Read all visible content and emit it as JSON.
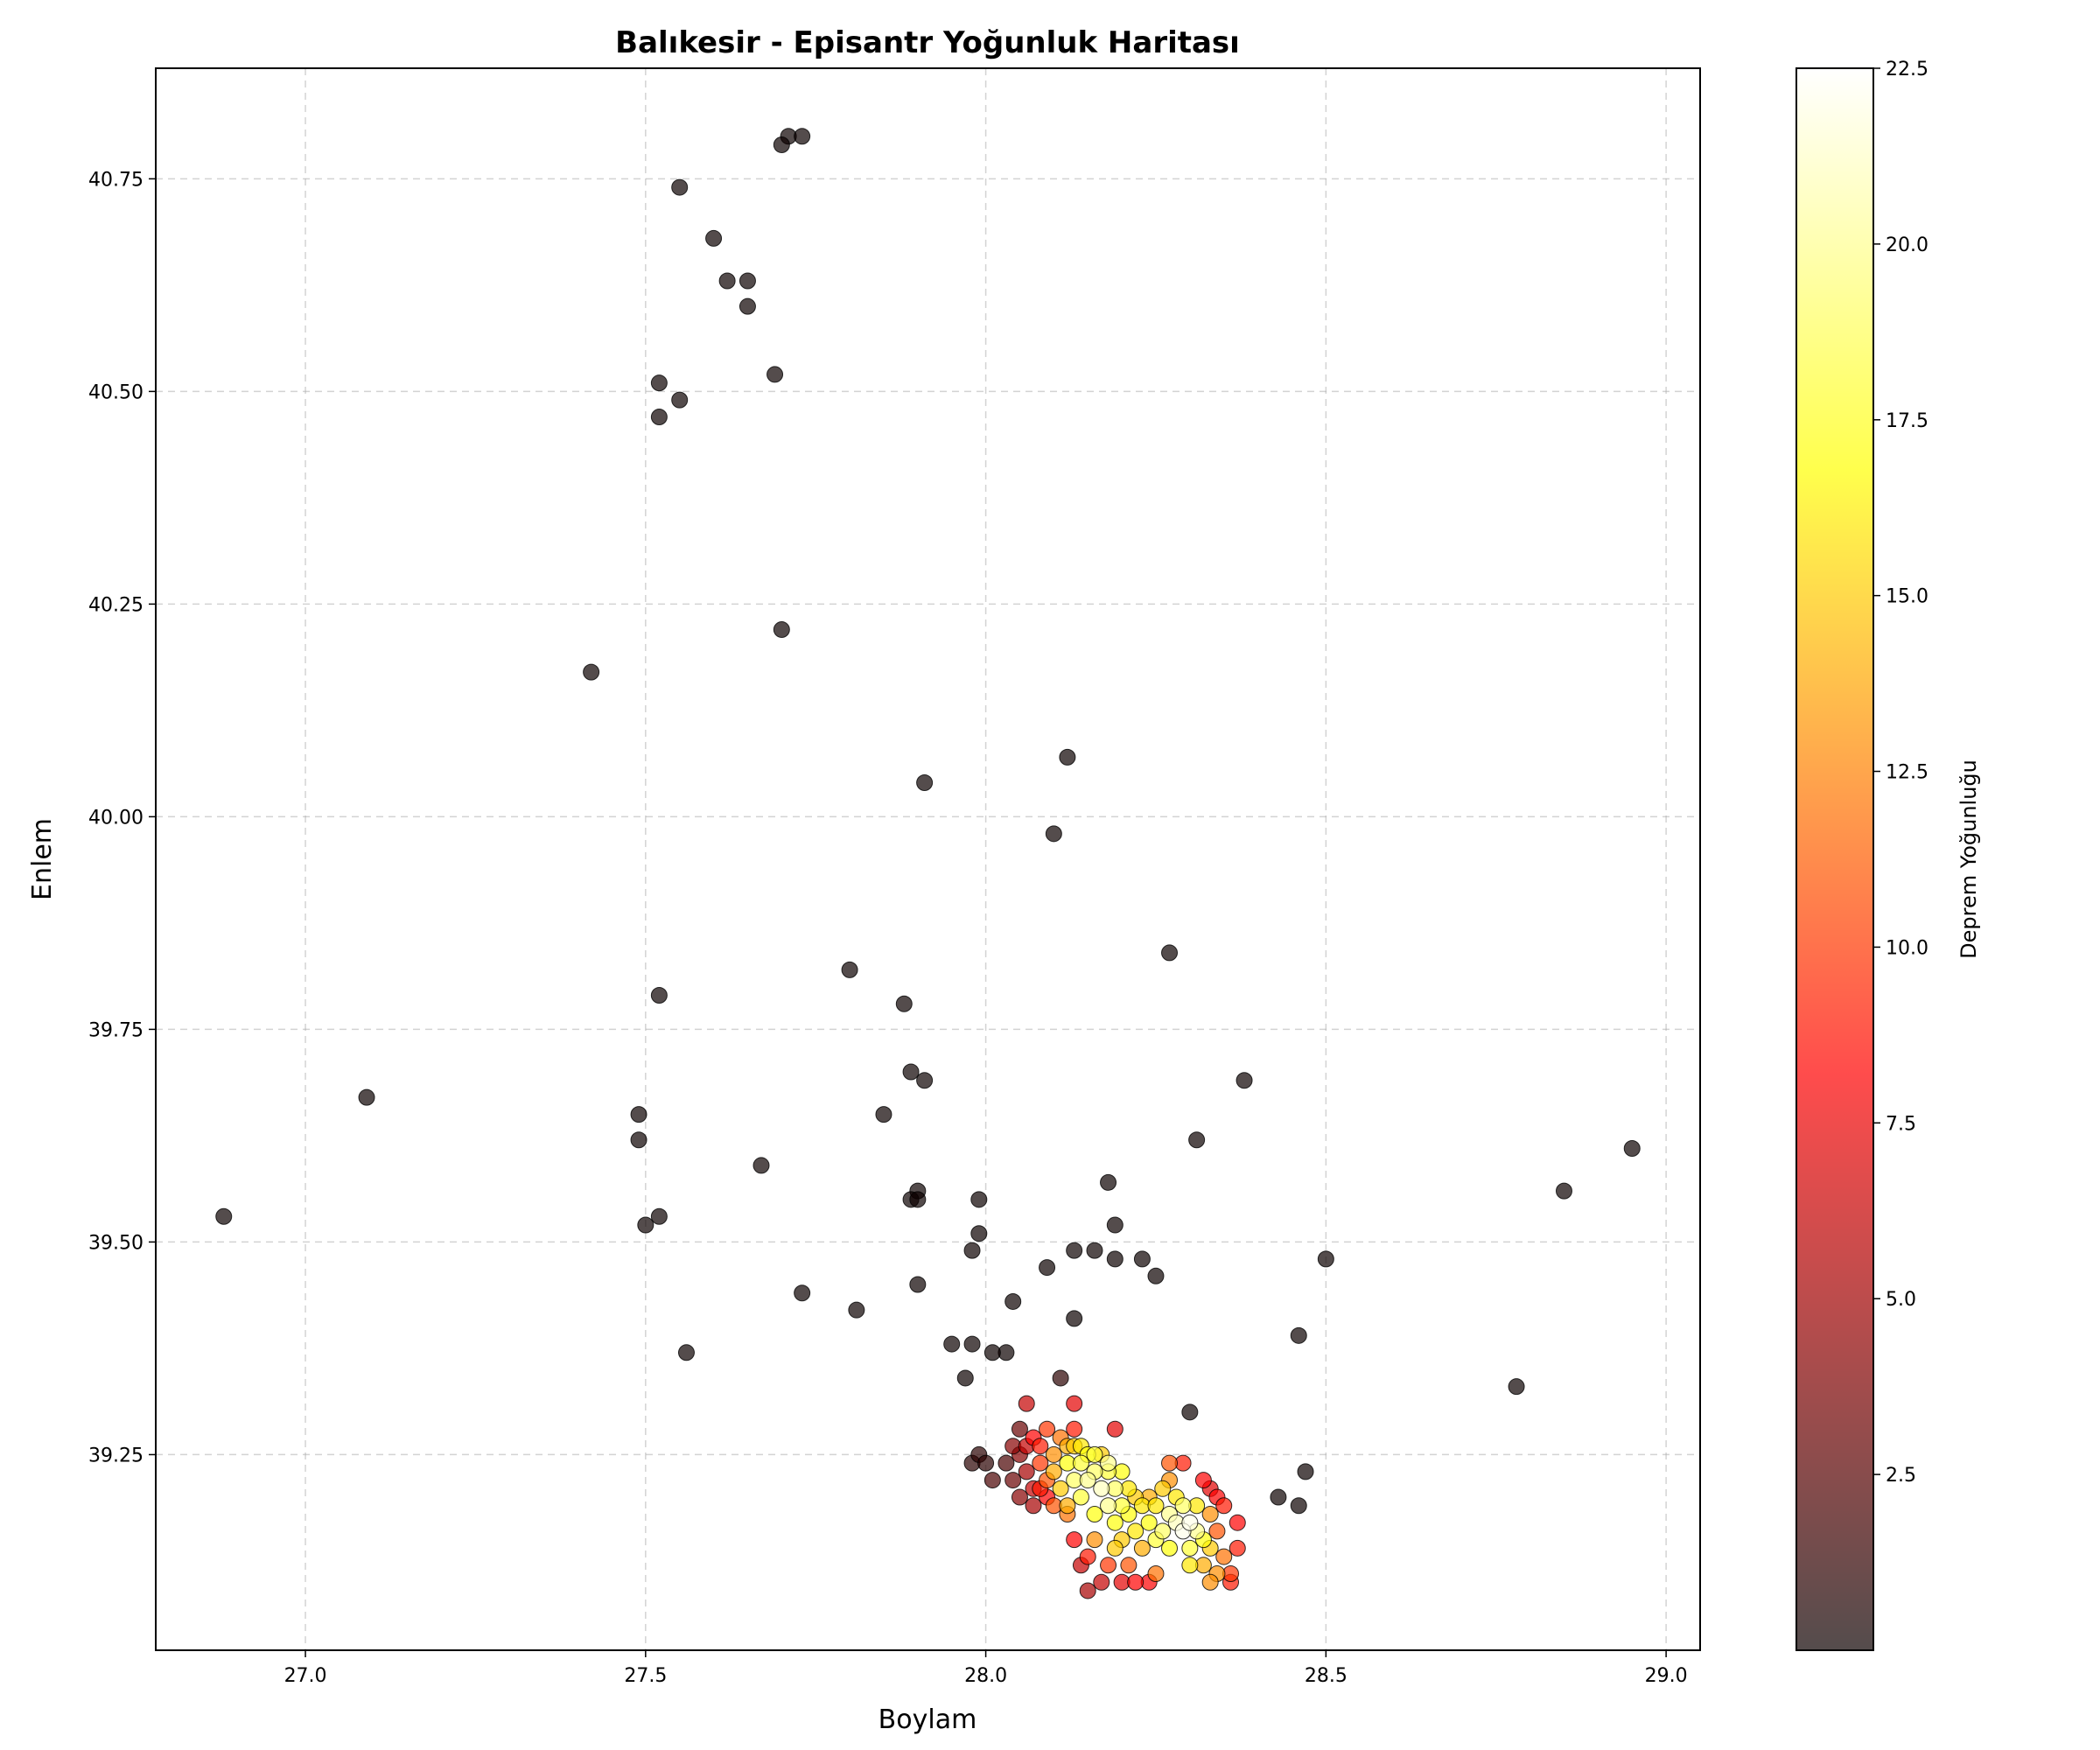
{
  "chart_data": {
    "type": "scatter",
    "title": "Balıkesir - Episantr Yoğunluk Haritası",
    "xlabel": "Boylam",
    "ylabel": "Enlem",
    "xlim": [
      26.78,
      29.05
    ],
    "ylim": [
      39.02,
      40.88
    ],
    "xticks": [
      "27.0",
      "27.5",
      "28.0",
      "28.5",
      "29.0"
    ],
    "yticks": [
      "39.25",
      "39.50",
      "39.75",
      "40.00",
      "40.25",
      "40.50",
      "40.75"
    ],
    "grid": true,
    "colorbar": {
      "label": "Deprem Yoğunluğu",
      "colormap": "hot",
      "range": [
        0,
        22.5
      ],
      "ticks": [
        "2.5",
        "5.0",
        "7.5",
        "10.0",
        "12.5",
        "15.0",
        "17.5",
        "20.0",
        "22.5"
      ]
    },
    "points": [
      {
        "x": 27.71,
        "y": 40.8,
        "v": 0
      },
      {
        "x": 27.73,
        "y": 40.8,
        "v": 0
      },
      {
        "x": 27.7,
        "y": 40.79,
        "v": 0
      },
      {
        "x": 27.55,
        "y": 40.74,
        "v": 0
      },
      {
        "x": 27.6,
        "y": 40.68,
        "v": 0
      },
      {
        "x": 27.62,
        "y": 40.63,
        "v": 0
      },
      {
        "x": 27.65,
        "y": 40.63,
        "v": 0
      },
      {
        "x": 27.65,
        "y": 40.6,
        "v": 0
      },
      {
        "x": 27.69,
        "y": 40.52,
        "v": 0
      },
      {
        "x": 27.52,
        "y": 40.51,
        "v": 0
      },
      {
        "x": 27.55,
        "y": 40.49,
        "v": 0
      },
      {
        "x": 27.52,
        "y": 40.47,
        "v": 0
      },
      {
        "x": 27.7,
        "y": 40.22,
        "v": 0
      },
      {
        "x": 27.42,
        "y": 40.17,
        "v": 0
      },
      {
        "x": 28.12,
        "y": 40.07,
        "v": 0
      },
      {
        "x": 27.91,
        "y": 40.04,
        "v": 0
      },
      {
        "x": 28.1,
        "y": 39.98,
        "v": 0
      },
      {
        "x": 28.27,
        "y": 39.84,
        "v": 0
      },
      {
        "x": 27.8,
        "y": 39.82,
        "v": 0
      },
      {
        "x": 27.52,
        "y": 39.79,
        "v": 0
      },
      {
        "x": 27.88,
        "y": 39.78,
        "v": 0
      },
      {
        "x": 27.89,
        "y": 39.7,
        "v": 0
      },
      {
        "x": 27.91,
        "y": 39.69,
        "v": 0
      },
      {
        "x": 28.38,
        "y": 39.69,
        "v": 0
      },
      {
        "x": 27.09,
        "y": 39.67,
        "v": 0
      },
      {
        "x": 27.49,
        "y": 39.65,
        "v": 0
      },
      {
        "x": 27.85,
        "y": 39.65,
        "v": 0
      },
      {
        "x": 27.49,
        "y": 39.62,
        "v": 0
      },
      {
        "x": 28.31,
        "y": 39.62,
        "v": 0
      },
      {
        "x": 28.95,
        "y": 39.61,
        "v": 0
      },
      {
        "x": 27.67,
        "y": 39.59,
        "v": 0
      },
      {
        "x": 28.18,
        "y": 39.57,
        "v": 0
      },
      {
        "x": 27.9,
        "y": 39.56,
        "v": 0
      },
      {
        "x": 28.85,
        "y": 39.56,
        "v": 0
      },
      {
        "x": 27.89,
        "y": 39.55,
        "v": 0
      },
      {
        "x": 27.9,
        "y": 39.55,
        "v": 0
      },
      {
        "x": 27.99,
        "y": 39.55,
        "v": 0
      },
      {
        "x": 26.88,
        "y": 39.53,
        "v": 0
      },
      {
        "x": 27.52,
        "y": 39.53,
        "v": 0
      },
      {
        "x": 28.19,
        "y": 39.52,
        "v": 0
      },
      {
        "x": 27.5,
        "y": 39.52,
        "v": 0
      },
      {
        "x": 27.99,
        "y": 39.51,
        "v": 0
      },
      {
        "x": 27.98,
        "y": 39.49,
        "v": 0
      },
      {
        "x": 28.16,
        "y": 39.49,
        "v": 0
      },
      {
        "x": 28.13,
        "y": 39.49,
        "v": 0
      },
      {
        "x": 28.5,
        "y": 39.48,
        "v": 0
      },
      {
        "x": 28.19,
        "y": 39.48,
        "v": 0
      },
      {
        "x": 28.23,
        "y": 39.48,
        "v": 0
      },
      {
        "x": 28.09,
        "y": 39.47,
        "v": 0
      },
      {
        "x": 28.25,
        "y": 39.46,
        "v": 0
      },
      {
        "x": 27.9,
        "y": 39.45,
        "v": 0
      },
      {
        "x": 27.73,
        "y": 39.44,
        "v": 0
      },
      {
        "x": 28.04,
        "y": 39.43,
        "v": 0
      },
      {
        "x": 27.81,
        "y": 39.42,
        "v": 0
      },
      {
        "x": 28.13,
        "y": 39.41,
        "v": 0
      },
      {
        "x": 28.46,
        "y": 39.39,
        "v": 0
      },
      {
        "x": 27.98,
        "y": 39.38,
        "v": 0
      },
      {
        "x": 27.95,
        "y": 39.38,
        "v": 0
      },
      {
        "x": 27.56,
        "y": 39.37,
        "v": 0
      },
      {
        "x": 28.03,
        "y": 39.37,
        "v": 0
      },
      {
        "x": 28.01,
        "y": 39.37,
        "v": 0
      },
      {
        "x": 27.97,
        "y": 39.34,
        "v": 0
      },
      {
        "x": 28.11,
        "y": 39.34,
        "v": 1
      },
      {
        "x": 28.78,
        "y": 39.33,
        "v": 0
      },
      {
        "x": 28.3,
        "y": 39.3,
        "v": 0
      },
      {
        "x": 28.47,
        "y": 39.23,
        "v": 0
      },
      {
        "x": 28.43,
        "y": 39.2,
        "v": 0
      },
      {
        "x": 28.46,
        "y": 39.19,
        "v": 0
      },
      {
        "x": 28.06,
        "y": 39.31,
        "v": 6
      },
      {
        "x": 28.13,
        "y": 39.31,
        "v": 7
      },
      {
        "x": 28.05,
        "y": 39.28,
        "v": 3
      },
      {
        "x": 28.19,
        "y": 39.28,
        "v": 7
      },
      {
        "x": 28.07,
        "y": 39.27,
        "v": 8
      },
      {
        "x": 28.13,
        "y": 39.28,
        "v": 9
      },
      {
        "x": 27.98,
        "y": 39.24,
        "v": 1
      },
      {
        "x": 27.99,
        "y": 39.25,
        "v": 1
      },
      {
        "x": 28.0,
        "y": 39.24,
        "v": 1
      },
      {
        "x": 28.01,
        "y": 39.22,
        "v": 2
      },
      {
        "x": 28.03,
        "y": 39.24,
        "v": 2
      },
      {
        "x": 28.04,
        "y": 39.22,
        "v": 3
      },
      {
        "x": 28.05,
        "y": 39.25,
        "v": 4
      },
      {
        "x": 28.05,
        "y": 39.2,
        "v": 4
      },
      {
        "x": 28.06,
        "y": 39.23,
        "v": 5
      },
      {
        "x": 28.07,
        "y": 39.21,
        "v": 6
      },
      {
        "x": 28.07,
        "y": 39.19,
        "v": 5
      },
      {
        "x": 28.08,
        "y": 39.26,
        "v": 9
      },
      {
        "x": 28.08,
        "y": 39.24,
        "v": 10
      },
      {
        "x": 28.09,
        "y": 39.22,
        "v": 11
      },
      {
        "x": 28.09,
        "y": 39.2,
        "v": 8
      },
      {
        "x": 28.1,
        "y": 39.25,
        "v": 13
      },
      {
        "x": 28.1,
        "y": 39.23,
        "v": 14
      },
      {
        "x": 28.11,
        "y": 39.27,
        "v": 12
      },
      {
        "x": 28.11,
        "y": 39.21,
        "v": 15
      },
      {
        "x": 28.12,
        "y": 39.24,
        "v": 17
      },
      {
        "x": 28.12,
        "y": 39.19,
        "v": 14
      },
      {
        "x": 28.13,
        "y": 39.26,
        "v": 15
      },
      {
        "x": 28.13,
        "y": 39.22,
        "v": 19
      },
      {
        "x": 28.14,
        "y": 39.24,
        "v": 18
      },
      {
        "x": 28.14,
        "y": 39.2,
        "v": 18
      },
      {
        "x": 28.15,
        "y": 39.25,
        "v": 17
      },
      {
        "x": 28.15,
        "y": 39.22,
        "v": 20
      },
      {
        "x": 28.16,
        "y": 39.18,
        "v": 17
      },
      {
        "x": 28.16,
        "y": 39.23,
        "v": 19
      },
      {
        "x": 28.17,
        "y": 39.21,
        "v": 21
      },
      {
        "x": 28.17,
        "y": 39.25,
        "v": 15
      },
      {
        "x": 28.18,
        "y": 39.19,
        "v": 20
      },
      {
        "x": 28.18,
        "y": 39.23,
        "v": 18
      },
      {
        "x": 28.19,
        "y": 39.17,
        "v": 17
      },
      {
        "x": 28.19,
        "y": 39.21,
        "v": 19
      },
      {
        "x": 28.2,
        "y": 39.19,
        "v": 18
      },
      {
        "x": 28.2,
        "y": 39.15,
        "v": 15
      },
      {
        "x": 28.21,
        "y": 39.18,
        "v": 17
      },
      {
        "x": 28.21,
        "y": 39.21,
        "v": 16
      },
      {
        "x": 28.22,
        "y": 39.16,
        "v": 16
      },
      {
        "x": 28.23,
        "y": 39.19,
        "v": 16
      },
      {
        "x": 28.23,
        "y": 39.14,
        "v": 14
      },
      {
        "x": 28.24,
        "y": 39.17,
        "v": 17
      },
      {
        "x": 28.25,
        "y": 39.15,
        "v": 18
      },
      {
        "x": 28.25,
        "y": 39.19,
        "v": 16
      },
      {
        "x": 28.26,
        "y": 39.16,
        "v": 19
      },
      {
        "x": 28.26,
        "y": 39.21,
        "v": 15
      },
      {
        "x": 28.27,
        "y": 39.18,
        "v": 20
      },
      {
        "x": 28.27,
        "y": 39.14,
        "v": 17
      },
      {
        "x": 28.28,
        "y": 39.17,
        "v": 21
      },
      {
        "x": 28.28,
        "y": 39.2,
        "v": 16
      },
      {
        "x": 28.29,
        "y": 39.16,
        "v": 22
      },
      {
        "x": 28.29,
        "y": 39.19,
        "v": 19
      },
      {
        "x": 28.3,
        "y": 39.17,
        "v": 22
      },
      {
        "x": 28.3,
        "y": 39.14,
        "v": 18
      },
      {
        "x": 28.31,
        "y": 39.16,
        "v": 20
      },
      {
        "x": 28.31,
        "y": 39.19,
        "v": 16
      },
      {
        "x": 28.32,
        "y": 39.15,
        "v": 17
      },
      {
        "x": 28.32,
        "y": 39.12,
        "v": 14
      },
      {
        "x": 28.33,
        "y": 39.18,
        "v": 13
      },
      {
        "x": 28.33,
        "y": 39.14,
        "v": 15
      },
      {
        "x": 28.34,
        "y": 39.11,
        "v": 13
      },
      {
        "x": 28.34,
        "y": 39.16,
        "v": 11
      },
      {
        "x": 28.35,
        "y": 39.13,
        "v": 12
      },
      {
        "x": 28.35,
        "y": 39.19,
        "v": 9
      },
      {
        "x": 28.36,
        "y": 39.11,
        "v": 10
      },
      {
        "x": 28.37,
        "y": 39.14,
        "v": 9
      },
      {
        "x": 28.37,
        "y": 39.17,
        "v": 8
      },
      {
        "x": 28.36,
        "y": 39.1,
        "v": 9
      },
      {
        "x": 28.33,
        "y": 39.1,
        "v": 13
      },
      {
        "x": 28.3,
        "y": 39.12,
        "v": 16
      },
      {
        "x": 28.27,
        "y": 39.24,
        "v": 11
      },
      {
        "x": 28.29,
        "y": 39.24,
        "v": 9
      },
      {
        "x": 28.32,
        "y": 39.22,
        "v": 8
      },
      {
        "x": 28.33,
        "y": 39.21,
        "v": 7
      },
      {
        "x": 28.34,
        "y": 39.2,
        "v": 8
      },
      {
        "x": 28.24,
        "y": 39.1,
        "v": 8
      },
      {
        "x": 28.22,
        "y": 39.1,
        "v": 8
      },
      {
        "x": 28.2,
        "y": 39.1,
        "v": 7
      },
      {
        "x": 28.17,
        "y": 39.1,
        "v": 6
      },
      {
        "x": 28.15,
        "y": 39.09,
        "v": 5
      },
      {
        "x": 28.14,
        "y": 39.12,
        "v": 6
      },
      {
        "x": 28.13,
        "y": 39.15,
        "v": 8
      },
      {
        "x": 28.15,
        "y": 39.13,
        "v": 9
      },
      {
        "x": 28.18,
        "y": 39.12,
        "v": 10
      },
      {
        "x": 28.21,
        "y": 39.12,
        "v": 11
      },
      {
        "x": 28.25,
        "y": 39.11,
        "v": 12
      },
      {
        "x": 28.16,
        "y": 39.15,
        "v": 13
      },
      {
        "x": 28.19,
        "y": 39.14,
        "v": 15
      },
      {
        "x": 28.12,
        "y": 39.18,
        "v": 12
      },
      {
        "x": 28.1,
        "y": 39.19,
        "v": 11
      },
      {
        "x": 28.08,
        "y": 39.21,
        "v": 9
      },
      {
        "x": 28.06,
        "y": 39.26,
        "v": 6
      },
      {
        "x": 28.04,
        "y": 39.26,
        "v": 4
      },
      {
        "x": 28.09,
        "y": 39.28,
        "v": 10
      },
      {
        "x": 28.12,
        "y": 39.26,
        "v": 14
      },
      {
        "x": 28.14,
        "y": 39.26,
        "v": 16
      },
      {
        "x": 28.16,
        "y": 39.25,
        "v": 18
      },
      {
        "x": 28.18,
        "y": 39.24,
        "v": 20
      },
      {
        "x": 28.2,
        "y": 39.23,
        "v": 17
      },
      {
        "x": 28.22,
        "y": 39.2,
        "v": 15
      },
      {
        "x": 28.24,
        "y": 39.2,
        "v": 14
      },
      {
        "x": 28.27,
        "y": 39.22,
        "v": 13
      }
    ]
  }
}
